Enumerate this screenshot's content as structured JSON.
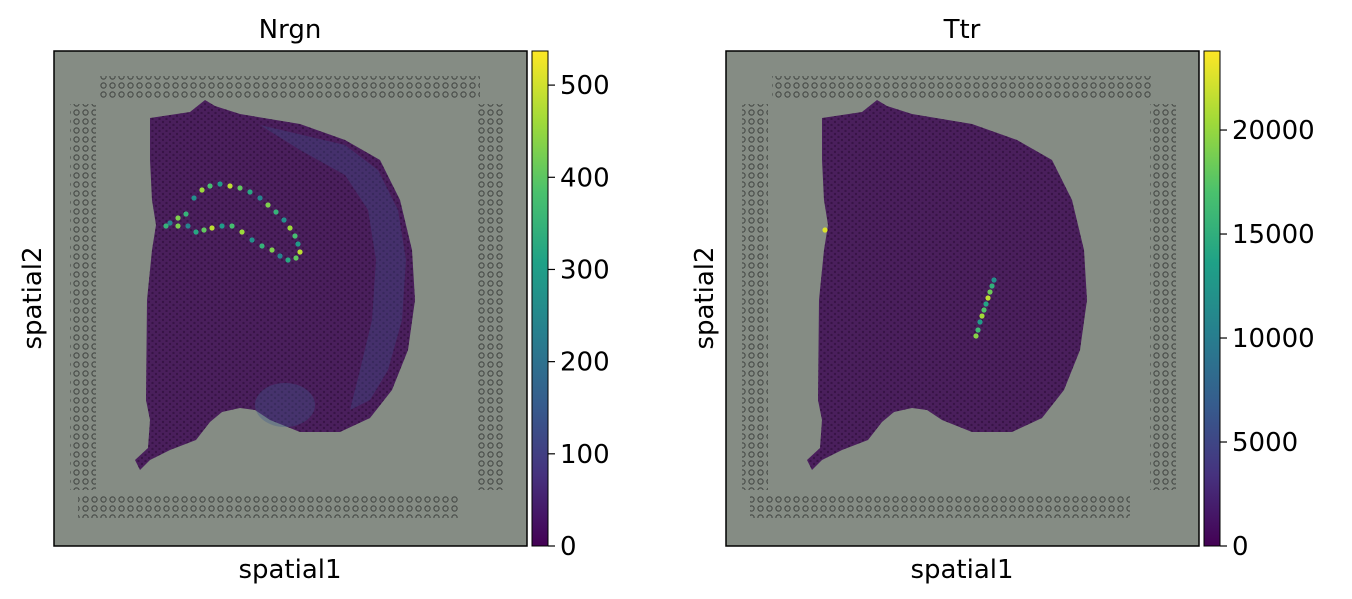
{
  "figure": {
    "panels": [
      {
        "title": "Nrgn",
        "xlabel": "spatial1",
        "ylabel": "spatial2"
      },
      {
        "title": "Ttr",
        "xlabel": "spatial1",
        "ylabel": "spatial2"
      }
    ]
  },
  "colors": {
    "background": "#858c84",
    "tissue_base": "#4a1f5c",
    "colormap": "viridis",
    "viridis_stops": [
      "#440154",
      "#46327e",
      "#365c8d",
      "#277f8e",
      "#1fa187",
      "#4ac16d",
      "#a0da39",
      "#fde725"
    ]
  },
  "chart_data": [
    {
      "type": "heatmap",
      "title": "Nrgn",
      "xlabel": "spatial1",
      "ylabel": "spatial2",
      "colorbar": {
        "range": [
          0,
          537
        ],
        "ticks": [
          0,
          100,
          200,
          300,
          400,
          500
        ],
        "tick_labels": [
          "0",
          "100",
          "200",
          "300",
          "400",
          "500"
        ]
      },
      "tissue_expression": {
        "base": 45,
        "hotspot_value": 520,
        "description_regions": [
          "hippocampus arc",
          "cortical layers"
        ]
      }
    },
    {
      "type": "heatmap",
      "title": "Ttr",
      "xlabel": "spatial1",
      "ylabel": "spatial2",
      "colorbar": {
        "range": [
          0,
          23800
        ],
        "ticks": [
          0,
          5000,
          10000,
          15000,
          20000
        ],
        "tick_labels": [
          "0",
          "5000",
          "10000",
          "15000",
          "20000"
        ]
      },
      "tissue_expression": {
        "base": 900,
        "hotspot_value": 22000
      }
    }
  ]
}
